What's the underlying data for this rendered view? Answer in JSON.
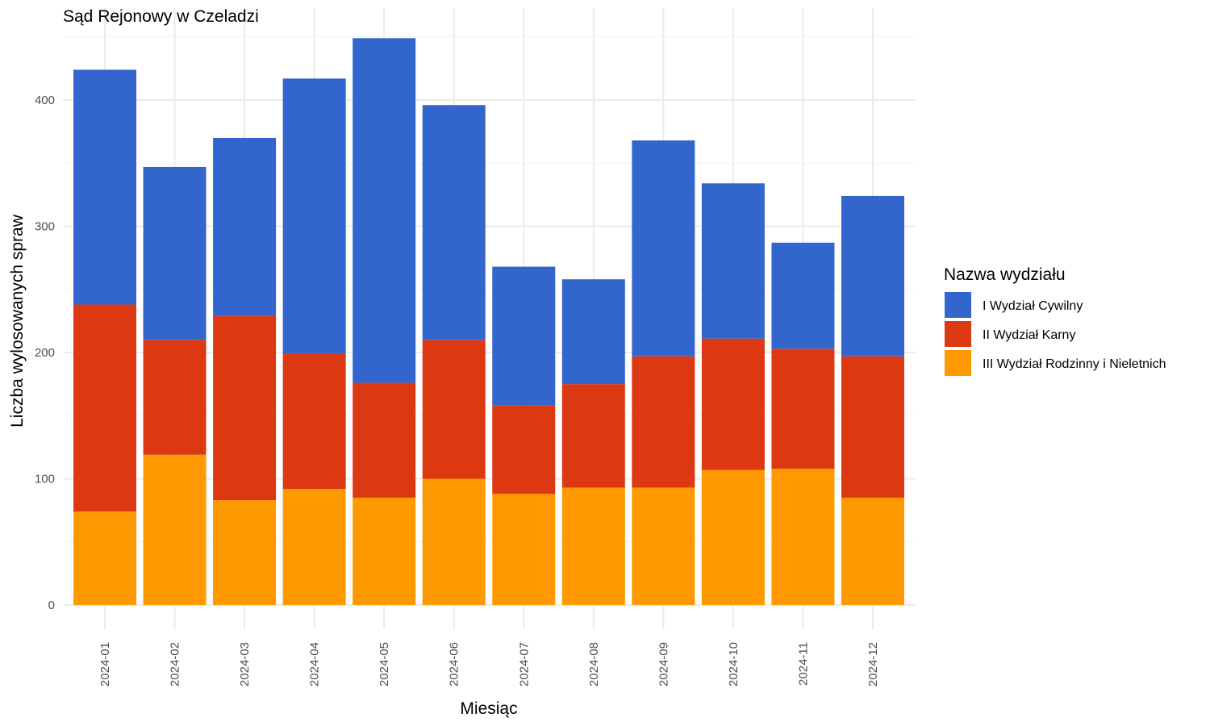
{
  "chart_data": {
    "type": "bar",
    "stacked": true,
    "title": "Sąd Rejonowy w Czeladzi",
    "xlabel": "Miesiąc",
    "ylabel": "Liczba wylosowanych spraw",
    "ylim": [
      0,
      460
    ],
    "yticks": [
      0,
      100,
      200,
      300,
      400
    ],
    "grid": true,
    "legend_position": "right",
    "legend_title": "Nazwa wydziału",
    "categories": [
      "2024-01",
      "2024-02",
      "2024-03",
      "2024-04",
      "2024-05",
      "2024-06",
      "2024-07",
      "2024-08",
      "2024-09",
      "2024-10",
      "2024-11",
      "2024-12"
    ],
    "series": [
      {
        "name": "III Wydział Rodzinny i Nieletnich",
        "color": "#FF9900",
        "values": [
          74,
          119,
          83,
          92,
          85,
          100,
          88,
          93,
          93,
          107,
          108,
          85
        ]
      },
      {
        "name": "II Wydział Karny",
        "color": "#DC3912",
        "values": [
          164,
          91,
          146,
          107,
          91,
          110,
          70,
          82,
          104,
          104,
          95,
          112
        ]
      },
      {
        "name": "I Wydział Cywilny",
        "color": "#3366CC",
        "values": [
          186,
          137,
          141,
          218,
          273,
          186,
          110,
          83,
          171,
          123,
          84,
          127
        ]
      }
    ],
    "legend_order": [
      "I Wydział Cywilny",
      "II Wydział Karny",
      "III Wydział Rodzinny i Nieletnich"
    ]
  }
}
